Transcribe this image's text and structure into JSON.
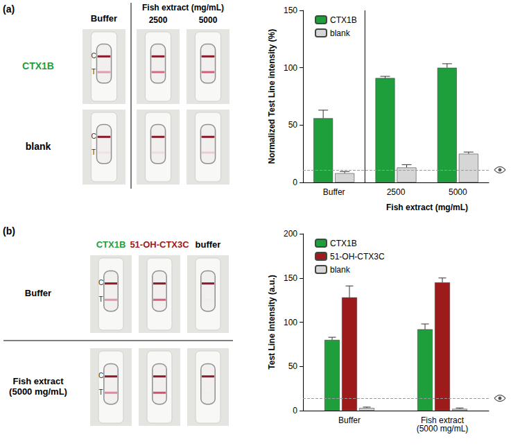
{
  "chart_data": [
    {
      "type": "bar",
      "categories": [
        "Buffer",
        "2500",
        "5000"
      ],
      "xlabel": "Fish extract (mg/mL)",
      "ylabel": "Normalized Test Line intensity (%)",
      "ylim": [
        0,
        150
      ],
      "yticks": [
        0,
        50,
        100,
        150
      ],
      "series": [
        {
          "name": "CTX1B",
          "color": "#1f9e3c",
          "values": [
            56,
            91,
            100
          ],
          "errors": [
            7,
            1.5,
            3.5
          ]
        },
        {
          "name": "blank",
          "color": "#d6d6d6",
          "values": [
            8,
            13,
            25
          ],
          "errors": [
            1.5,
            2.5,
            1.5
          ]
        }
      ],
      "threshold": 11,
      "legend": "upper left",
      "grid": false
    },
    {
      "type": "bar",
      "categories": [
        "Buffer",
        "Fish extract (5000 mg/mL)"
      ],
      "ylabel": "Test Line intensity (a.u.)",
      "ylim": [
        0,
        200
      ],
      "yticks": [
        0,
        50,
        100,
        150,
        200
      ],
      "series": [
        {
          "name": "CTX1B",
          "color": "#1f9e3c",
          "values": [
            80,
            92
          ],
          "errors": [
            3,
            6
          ]
        },
        {
          "name": "51-OH-CTX3C",
          "color": "#9e1b1b",
          "values": [
            128,
            145
          ],
          "errors": [
            13,
            5
          ]
        },
        {
          "name": "blank",
          "color": "#d6d6d6",
          "values": [
            3,
            2
          ],
          "errors": [
            1,
            1
          ]
        }
      ],
      "threshold": 14,
      "legend": "upper left",
      "grid": false
    }
  ],
  "strips": [
    {
      "letter": "(a)",
      "column_heads": [
        "Buffer"
      ],
      "group_head": "Fish extract (mg/mL)",
      "group_columns": [
        "2500",
        "5000"
      ],
      "row_heads": [
        "CTX1B",
        "blank"
      ],
      "row_colors": [
        "#1f9e3c",
        "#000000"
      ],
      "line_labels": [
        "C",
        "T"
      ]
    },
    {
      "letter": "(b)",
      "column_heads": [
        "CTX1B",
        "51-OH-CTX3C",
        "buffer"
      ],
      "column_colors": [
        "#1f9e3c",
        "#9e1b1b",
        "#000000"
      ],
      "row_heads": [
        "Buffer",
        "Fish extract (5000 mg/mL)"
      ],
      "line_labels": [
        "C",
        "T"
      ]
    }
  ]
}
